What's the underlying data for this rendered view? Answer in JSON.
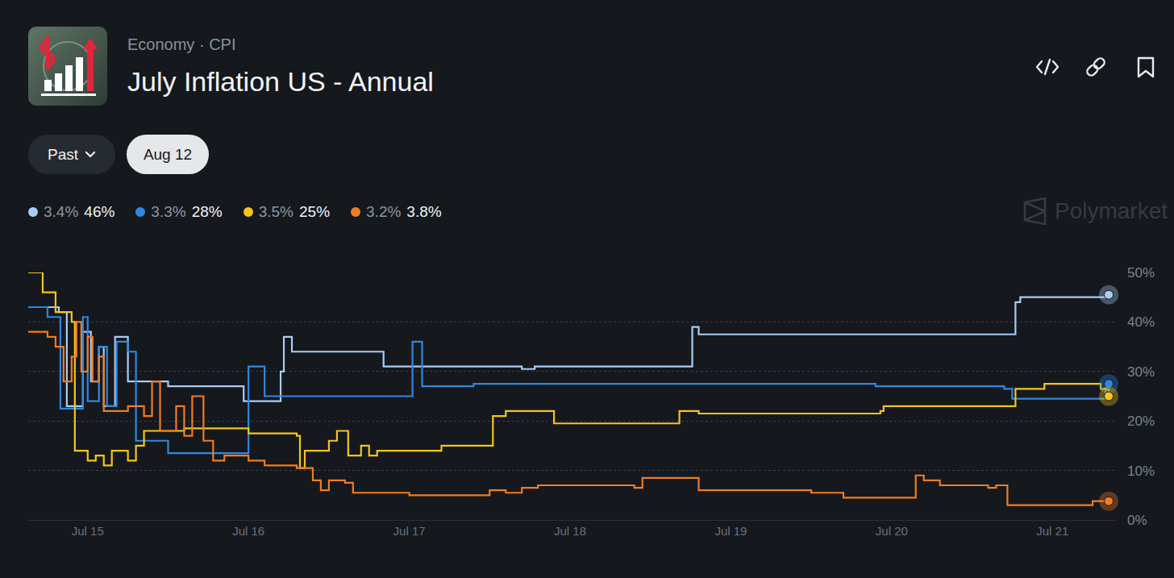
{
  "chart_data": {
    "type": "line",
    "breadcrumb": "Economy · CPI",
    "title": "July Inflation US - Annual",
    "buttons": [
      "Past",
      "Aug 12"
    ],
    "watermark": "Polymarket",
    "legend": "top",
    "grid": true,
    "line_style": "step",
    "xlim": [
      14.63,
      21.4
    ],
    "xticks": [
      {
        "value": 15,
        "label": "Jul 15"
      },
      {
        "value": 16,
        "label": "Jul 16"
      },
      {
        "value": 17,
        "label": "Jul 17"
      },
      {
        "value": 18,
        "label": "Jul 18"
      },
      {
        "value": 19,
        "label": "Jul 19"
      },
      {
        "value": 20,
        "label": "Jul 20"
      },
      {
        "value": 21,
        "label": "Jul 21"
      }
    ],
    "ylim": [
      0,
      50
    ],
    "yticks": [
      {
        "value": 0,
        "label": "0%"
      },
      {
        "value": 10,
        "label": "10%"
      },
      {
        "value": 20,
        "label": "20%"
      },
      {
        "value": 30,
        "label": "30%"
      },
      {
        "value": 40,
        "label": "40%"
      },
      {
        "value": 50,
        "label": "50%"
      }
    ],
    "series": [
      {
        "name": "3.4%",
        "chance_label": "46%",
        "color": "#a8cdf4",
        "x": [
          14.63,
          14.82,
          14.87,
          14.97,
          15.02,
          15.07,
          15.1,
          15.17,
          15.25,
          15.35,
          15.5,
          15.92,
          15.97,
          16.2,
          16.22,
          16.27,
          16.84,
          17.7,
          17.78,
          18.73,
          18.76,
          18.8,
          20.75,
          20.77,
          20.8,
          21.35
        ],
        "values": [
          43,
          42,
          23,
          38,
          28,
          35,
          23,
          37,
          28,
          28,
          27,
          27,
          24,
          30,
          37,
          34,
          31,
          30.5,
          31,
          31,
          39,
          37.5,
          37.5,
          44,
          45,
          45.5
        ]
      },
      {
        "name": "3.3%",
        "chance_label": "28%",
        "color": "#2f88e0",
        "x": [
          14.63,
          14.75,
          14.83,
          14.97,
          15.0,
          15.07,
          15.12,
          15.18,
          15.25,
          15.3,
          15.45,
          15.5,
          15.97,
          16.0,
          16.1,
          16.2,
          17.0,
          17.02,
          17.08,
          17.4,
          19.9,
          20.7,
          20.75,
          21.33,
          21.35
        ],
        "values": [
          43,
          41,
          22.5,
          41,
          24,
          35,
          23,
          36,
          34,
          16,
          16,
          13.5,
          13.5,
          31,
          25,
          25,
          25,
          36,
          27,
          27.5,
          27,
          26.5,
          24.5,
          27.5,
          27.5
        ]
      },
      {
        "name": "3.5%",
        "chance_label": "25%",
        "color": "#f5c518",
        "x": [
          14.63,
          14.68,
          14.72,
          14.8,
          14.9,
          14.92,
          15.0,
          15.05,
          15.1,
          15.15,
          15.25,
          15.3,
          15.35,
          15.6,
          16.0,
          16.3,
          16.32,
          16.35,
          16.5,
          16.55,
          16.62,
          16.7,
          16.75,
          16.8,
          17.2,
          17.48,
          17.52,
          17.6,
          17.85,
          17.9,
          18.65,
          18.68,
          18.8,
          19.5,
          19.93,
          19.95,
          20.7,
          20.77,
          20.95,
          21.3,
          21.35
        ],
        "values": [
          50,
          50,
          46,
          42,
          40,
          14,
          12,
          13,
          11,
          14,
          12,
          15,
          18,
          18.5,
          17.5,
          17,
          10.5,
          14,
          16,
          18,
          13,
          15,
          13,
          14,
          15,
          15,
          21,
          22,
          22,
          19.5,
          19.5,
          22,
          21.5,
          21.5,
          22,
          23,
          23,
          26.5,
          27.5,
          26.5,
          25
        ]
      },
      {
        "name": "3.2%",
        "chance_label": "3.8%",
        "color": "#f07c22",
        "x": [
          14.63,
          14.72,
          14.75,
          14.8,
          14.85,
          14.9,
          14.93,
          14.96,
          15.0,
          15.03,
          15.07,
          15.1,
          15.15,
          15.25,
          15.35,
          15.4,
          15.45,
          15.55,
          15.6,
          15.65,
          15.72,
          15.78,
          15.85,
          16.0,
          16.1,
          16.3,
          16.4,
          16.45,
          16.5,
          16.6,
          16.65,
          17.0,
          17.4,
          17.5,
          17.6,
          17.7,
          17.8,
          18.2,
          18.4,
          18.45,
          18.75,
          18.8,
          19.5,
          19.7,
          20.1,
          20.15,
          20.2,
          20.3,
          20.55,
          20.6,
          20.65,
          20.72,
          21.2,
          21.25,
          21.35
        ],
        "values": [
          38,
          38,
          37,
          35,
          28,
          33,
          40,
          30,
          37,
          28,
          33,
          22,
          22,
          23,
          21,
          28,
          18,
          23,
          17,
          25,
          16,
          12,
          13,
          12,
          11,
          10.5,
          8,
          6,
          8,
          7.5,
          5.5,
          5,
          5,
          6,
          5.5,
          6.5,
          7,
          7,
          6.5,
          8.5,
          8.5,
          6,
          5.5,
          4.5,
          4.5,
          9,
          8,
          7,
          7,
          6.5,
          7,
          3,
          3,
          3.8,
          3.8
        ]
      }
    ]
  }
}
